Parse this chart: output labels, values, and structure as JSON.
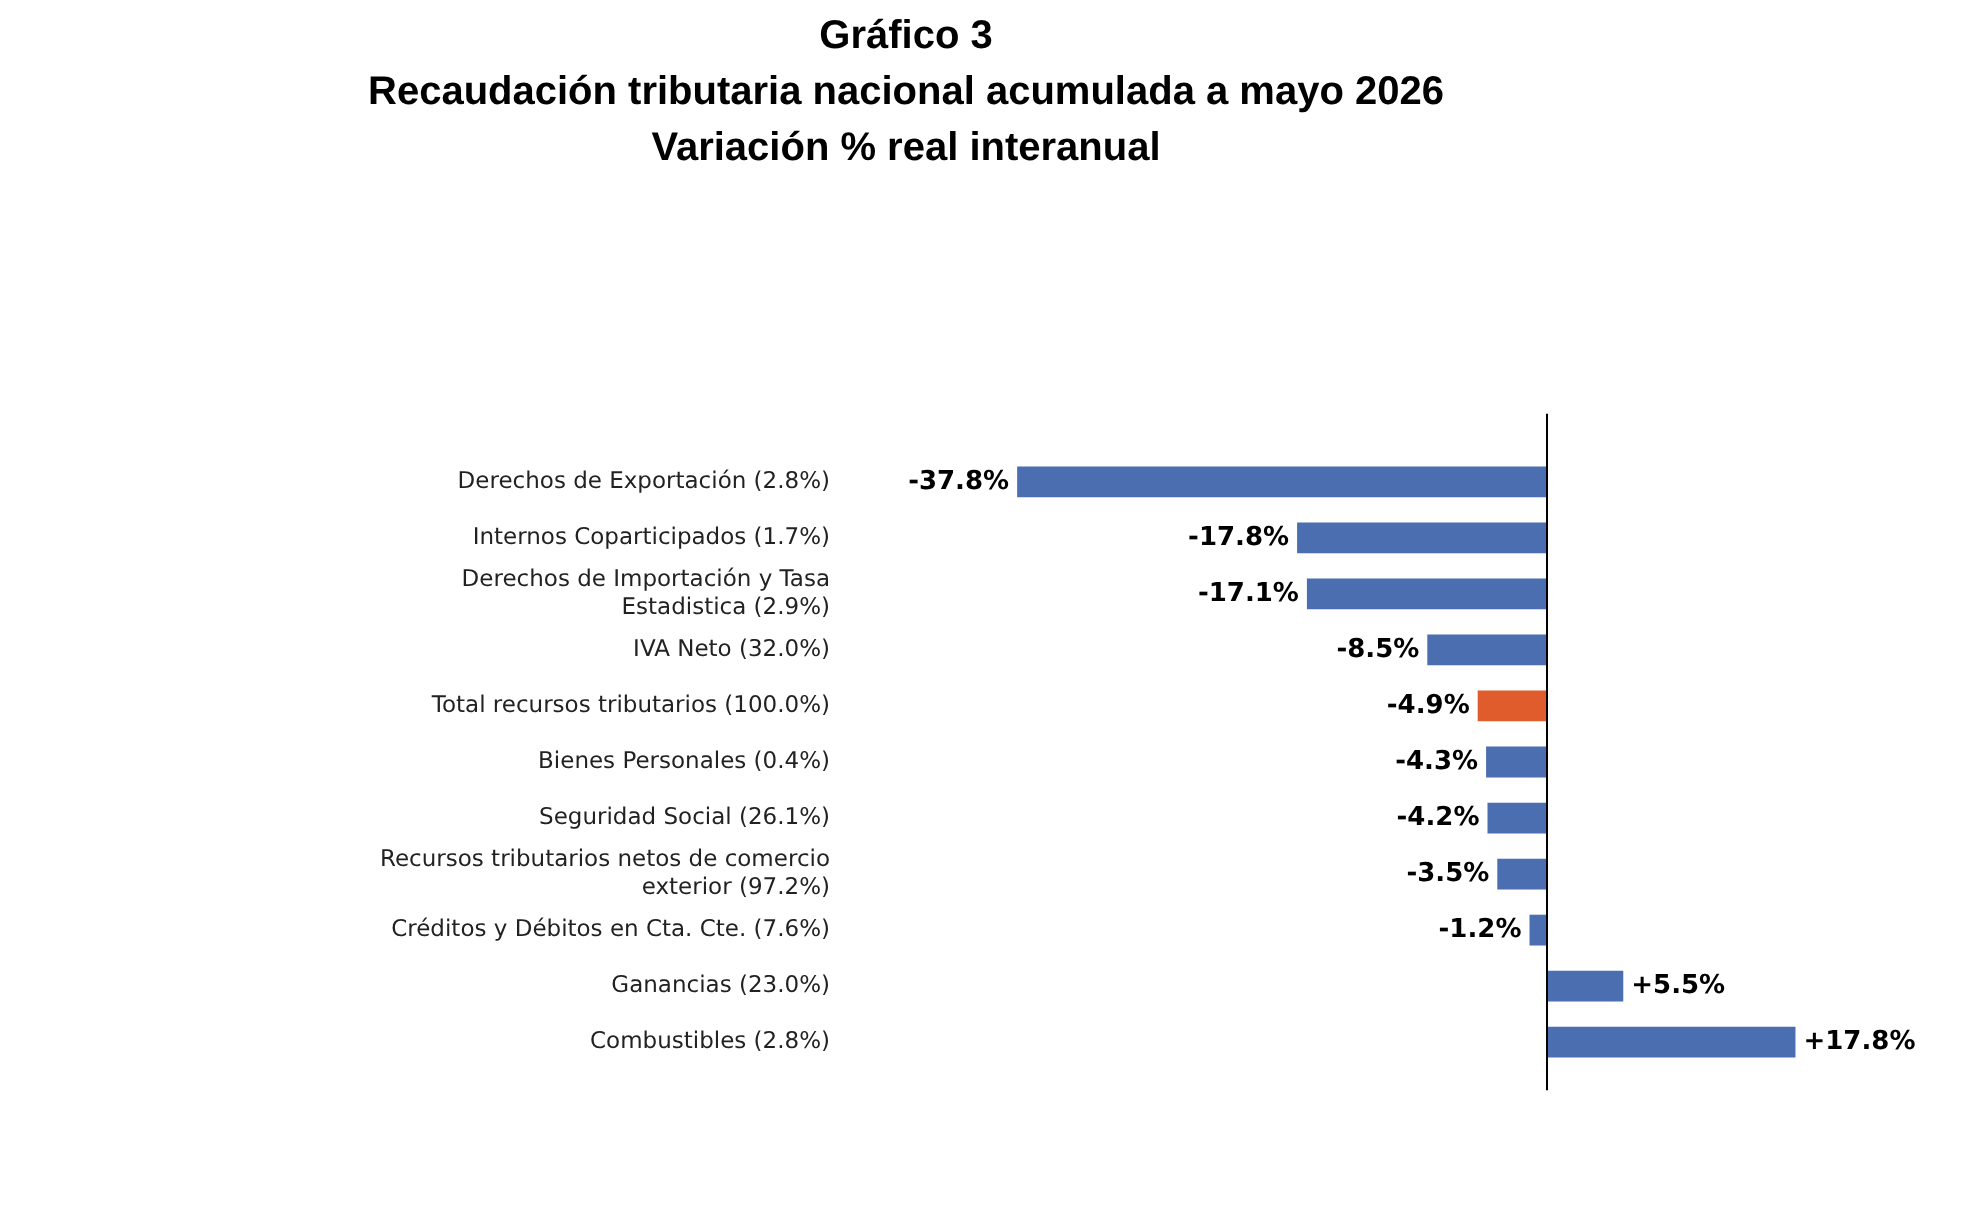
{
  "chart_data": {
    "type": "bar",
    "orientation": "horizontal",
    "title": "Gráfico 3\nRecaudación tributaria nacional acumulada a mayo 2026\nVariación % real interanual",
    "categories": [
      "Derechos de Exportación (2.8%)",
      "Internos Coparticipados (1.7%)",
      "Derechos de Importación y Tasa Estadistica (2.9%)",
      "IVA Neto (32.0%)",
      "Total recursos tributarios (100.0%)",
      "Bienes Personales (0.4%)",
      "Seguridad Social (26.1%)",
      "Recursos tributarios netos de comercio exterior (97.2%)",
      "Créditos y Débitos en Cta. Cte. (7.6%)",
      "Ganancias (23.0%)",
      "Combustibles (2.8%)"
    ],
    "values": [
      -37.8,
      -17.8,
      -17.1,
      -8.5,
      -4.9,
      -4.3,
      -4.2,
      -3.5,
      -1.2,
      5.5,
      17.8
    ],
    "colors": [
      "#4a6eb0",
      "#4a6eb0",
      "#4a6eb0",
      "#4a6eb0",
      "#e05c2c",
      "#4a6eb0",
      "#4a6eb0",
      "#4a6eb0",
      "#4a6eb0",
      "#4a6eb0",
      "#4a6eb0"
    ],
    "value_labels": [
      "-37.8%",
      "-17.8%",
      "-17.1%",
      "-8.5%",
      "-4.9%",
      "-4.3%",
      "-4.2%",
      "-3.5%",
      "-1.2%",
      "+5.5%",
      "+17.8%"
    ],
    "legend": false
  }
}
